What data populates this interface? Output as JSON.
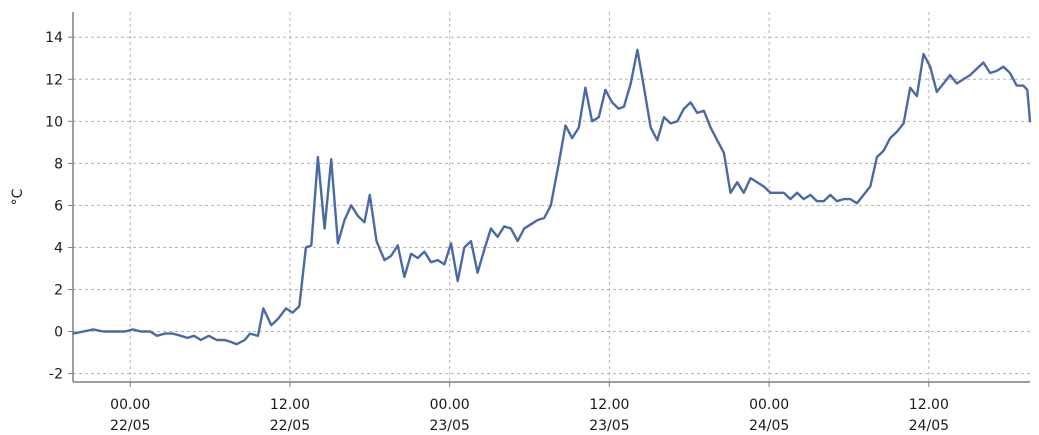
{
  "chart_data": {
    "type": "line",
    "ylabel": "°C",
    "ylim": [
      -2.4,
      15.2
    ],
    "yticks": [
      -2,
      0,
      2,
      4,
      6,
      8,
      10,
      12,
      14
    ],
    "xlim": [
      -4.3,
      67.6
    ],
    "x_unit": "hours from 22/05 00.00",
    "xticks": [
      {
        "x": 0,
        "time": "00.00",
        "date": "22/05"
      },
      {
        "x": 12,
        "time": "12.00",
        "date": "22/05"
      },
      {
        "x": 24,
        "time": "00.00",
        "date": "23/05"
      },
      {
        "x": 36,
        "time": "12.00",
        "date": "23/05"
      },
      {
        "x": 48,
        "time": "00.00",
        "date": "24/05"
      },
      {
        "x": 60,
        "time": "12.00",
        "date": "24/05"
      }
    ],
    "grid": true,
    "series": [
      {
        "color": "#4a6aa5",
        "points": [
          [
            -4.3,
            -0.1
          ],
          [
            -3.5,
            0.0
          ],
          [
            -2.8,
            0.1
          ],
          [
            -2.0,
            0.0
          ],
          [
            -1.2,
            0.0
          ],
          [
            -0.4,
            0.0
          ],
          [
            0.2,
            0.1
          ],
          [
            0.8,
            0.0
          ],
          [
            1.5,
            0.0
          ],
          [
            2.0,
            -0.2
          ],
          [
            2.6,
            -0.1
          ],
          [
            3.2,
            -0.1
          ],
          [
            3.8,
            -0.2
          ],
          [
            4.3,
            -0.3
          ],
          [
            4.8,
            -0.2
          ],
          [
            5.3,
            -0.4
          ],
          [
            5.9,
            -0.2
          ],
          [
            6.5,
            -0.4
          ],
          [
            7.1,
            -0.4
          ],
          [
            7.6,
            -0.5
          ],
          [
            8.0,
            -0.6
          ],
          [
            8.6,
            -0.4
          ],
          [
            9.0,
            -0.1
          ],
          [
            9.6,
            -0.2
          ],
          [
            10.0,
            1.1
          ],
          [
            10.6,
            0.3
          ],
          [
            11.1,
            0.6
          ],
          [
            11.7,
            1.1
          ],
          [
            12.2,
            0.9
          ],
          [
            12.7,
            1.2
          ],
          [
            13.2,
            4.0
          ],
          [
            13.6,
            4.1
          ],
          [
            14.1,
            8.3
          ],
          [
            14.6,
            4.9
          ],
          [
            15.1,
            8.2
          ],
          [
            15.6,
            4.2
          ],
          [
            16.1,
            5.3
          ],
          [
            16.6,
            6.0
          ],
          [
            17.1,
            5.5
          ],
          [
            17.6,
            5.2
          ],
          [
            18.0,
            6.5
          ],
          [
            18.5,
            4.3
          ],
          [
            19.1,
            3.4
          ],
          [
            19.6,
            3.6
          ],
          [
            20.1,
            4.1
          ],
          [
            20.6,
            2.6
          ],
          [
            21.1,
            3.7
          ],
          [
            21.6,
            3.5
          ],
          [
            22.1,
            3.8
          ],
          [
            22.6,
            3.3
          ],
          [
            23.1,
            3.4
          ],
          [
            23.6,
            3.2
          ],
          [
            24.1,
            4.2
          ],
          [
            24.6,
            2.4
          ],
          [
            25.1,
            4.0
          ],
          [
            25.6,
            4.3
          ],
          [
            26.1,
            2.8
          ],
          [
            26.6,
            3.9
          ],
          [
            27.1,
            4.9
          ],
          [
            27.6,
            4.5
          ],
          [
            28.1,
            5.0
          ],
          [
            28.6,
            4.9
          ],
          [
            29.1,
            4.3
          ],
          [
            29.6,
            4.9
          ],
          [
            30.1,
            5.1
          ],
          [
            30.6,
            5.3
          ],
          [
            31.1,
            5.4
          ],
          [
            31.6,
            6.0
          ],
          [
            32.2,
            8.0
          ],
          [
            32.7,
            9.8
          ],
          [
            33.2,
            9.2
          ],
          [
            33.7,
            9.7
          ],
          [
            34.2,
            11.6
          ],
          [
            34.7,
            10.0
          ],
          [
            35.2,
            10.2
          ],
          [
            35.7,
            11.5
          ],
          [
            36.2,
            10.9
          ],
          [
            36.7,
            10.6
          ],
          [
            37.1,
            10.7
          ],
          [
            37.6,
            11.8
          ],
          [
            38.1,
            13.4
          ],
          [
            38.6,
            11.6
          ],
          [
            39.1,
            9.7
          ],
          [
            39.6,
            9.1
          ],
          [
            40.1,
            10.2
          ],
          [
            40.6,
            9.9
          ],
          [
            41.1,
            10.0
          ],
          [
            41.6,
            10.6
          ],
          [
            42.1,
            10.9
          ],
          [
            42.6,
            10.4
          ],
          [
            43.1,
            10.5
          ],
          [
            43.6,
            9.7
          ],
          [
            44.1,
            9.1
          ],
          [
            44.6,
            8.5
          ],
          [
            45.1,
            6.6
          ],
          [
            45.6,
            7.1
          ],
          [
            46.1,
            6.6
          ],
          [
            46.6,
            7.3
          ],
          [
            47.1,
            7.1
          ],
          [
            47.6,
            6.9
          ],
          [
            48.1,
            6.6
          ],
          [
            48.6,
            6.6
          ],
          [
            49.1,
            6.6
          ],
          [
            49.6,
            6.3
          ],
          [
            50.1,
            6.6
          ],
          [
            50.6,
            6.3
          ],
          [
            51.1,
            6.5
          ],
          [
            51.6,
            6.2
          ],
          [
            52.1,
            6.2
          ],
          [
            52.6,
            6.5
          ],
          [
            53.1,
            6.2
          ],
          [
            53.6,
            6.3
          ],
          [
            54.1,
            6.3
          ],
          [
            54.6,
            6.1
          ],
          [
            55.1,
            6.5
          ],
          [
            55.6,
            6.9
          ],
          [
            56.1,
            8.3
          ],
          [
            56.6,
            8.6
          ],
          [
            57.1,
            9.2
          ],
          [
            57.6,
            9.5
          ],
          [
            58.1,
            9.9
          ],
          [
            58.6,
            11.6
          ],
          [
            59.1,
            11.2
          ],
          [
            59.6,
            13.2
          ],
          [
            60.1,
            12.6
          ],
          [
            60.6,
            11.4
          ],
          [
            61.1,
            11.8
          ],
          [
            61.6,
            12.2
          ],
          [
            62.1,
            11.8
          ],
          [
            62.6,
            12.0
          ],
          [
            63.1,
            12.2
          ],
          [
            63.6,
            12.5
          ],
          [
            64.1,
            12.8
          ],
          [
            64.6,
            12.3
          ],
          [
            65.1,
            12.4
          ],
          [
            65.6,
            12.6
          ],
          [
            66.1,
            12.3
          ],
          [
            66.6,
            11.7
          ],
          [
            67.1,
            11.7
          ],
          [
            67.4,
            11.5
          ],
          [
            67.6,
            10.0
          ]
        ]
      }
    ]
  }
}
